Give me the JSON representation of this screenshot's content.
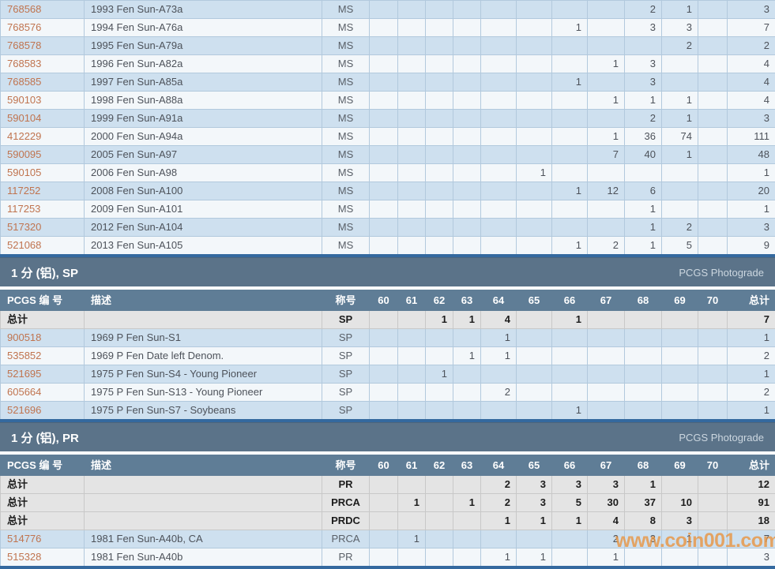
{
  "labels": {
    "photograde": "PCGS Photograde",
    "watermark": "www.coin001.com",
    "totals_row": "总计"
  },
  "columns": {
    "pcgs": "PCGS 编 号",
    "desc": "描述",
    "desig": "称号",
    "grades": [
      "60",
      "61",
      "62",
      "63",
      "64",
      "65",
      "66",
      "67",
      "68",
      "69",
      "70"
    ],
    "total": "总计"
  },
  "colors": {
    "row_blue": "#cee0ef",
    "row_white": "#f3f7fa",
    "row_totals_bg": "#e4e4e4",
    "section_bar": "#5b7389",
    "header_row": "#5f7d96",
    "table_bottom_border": "#34699f",
    "pcgs_link": "#c0744f",
    "watermark": "#e89440"
  },
  "sections": [
    {
      "show_header": false,
      "totals": [],
      "rows": [
        {
          "pcgs": "768568",
          "desc": "1993 Fen Sun-A73a",
          "desig": "MS",
          "g": {
            "68": "2",
            "69": "1"
          },
          "total": "3"
        },
        {
          "pcgs": "768576",
          "desc": "1994 Fen Sun-A76a",
          "desig": "MS",
          "g": {
            "66": "1",
            "68": "3",
            "69": "3"
          },
          "total": "7"
        },
        {
          "pcgs": "768578",
          "desc": "1995 Fen Sun-A79a",
          "desig": "MS",
          "g": {
            "69": "2"
          },
          "total": "2"
        },
        {
          "pcgs": "768583",
          "desc": "1996 Fen Sun-A82a",
          "desig": "MS",
          "g": {
            "67": "1",
            "68": "3"
          },
          "total": "4"
        },
        {
          "pcgs": "768585",
          "desc": "1997 Fen Sun-A85a",
          "desig": "MS",
          "g": {
            "66": "1",
            "68": "3"
          },
          "total": "4"
        },
        {
          "pcgs": "590103",
          "desc": "1998 Fen Sun-A88a",
          "desig": "MS",
          "g": {
            "67": "1",
            "68": "1",
            "69": "1"
          },
          "total": "4"
        },
        {
          "pcgs": "590104",
          "desc": "1999 Fen Sun-A91a",
          "desig": "MS",
          "g": {
            "68": "2",
            "69": "1"
          },
          "total": "3"
        },
        {
          "pcgs": "412229",
          "desc": "2000 Fen Sun-A94a",
          "desig": "MS",
          "g": {
            "67": "1",
            "68": "36",
            "69": "74"
          },
          "total": "111"
        },
        {
          "pcgs": "590095",
          "desc": "2005 Fen Sun-A97",
          "desig": "MS",
          "g": {
            "67": "7",
            "68": "40",
            "69": "1"
          },
          "total": "48"
        },
        {
          "pcgs": "590105",
          "desc": "2006 Fen Sun-A98",
          "desig": "MS",
          "g": {
            "65": "1"
          },
          "total": "1"
        },
        {
          "pcgs": "117252",
          "desc": "2008 Fen Sun-A100",
          "desig": "MS",
          "g": {
            "66": "1",
            "67": "12",
            "68": "6"
          },
          "total": "20"
        },
        {
          "pcgs": "117253",
          "desc": "2009 Fen Sun-A101",
          "desig": "MS",
          "g": {
            "68": "1"
          },
          "total": "1"
        },
        {
          "pcgs": "517320",
          "desc": "2012 Fen Sun-A104",
          "desig": "MS",
          "g": {
            "68": "1",
            "69": "2"
          },
          "total": "3"
        },
        {
          "pcgs": "521068",
          "desc": "2013 Fen Sun-A105",
          "desig": "MS",
          "g": {
            "66": "1",
            "67": "2",
            "68": "1",
            "69": "5"
          },
          "total": "9"
        }
      ]
    },
    {
      "title": "1 分 (铝), SP",
      "show_header": true,
      "totals": [
        {
          "desig": "SP",
          "g": {
            "62": "1",
            "63": "1",
            "64": "4",
            "66": "1"
          },
          "total": "7"
        }
      ],
      "rows": [
        {
          "pcgs": "900518",
          "desc": "1969 P Fen Sun-S1",
          "desig": "SP",
          "g": {
            "64": "1"
          },
          "total": "1"
        },
        {
          "pcgs": "535852",
          "desc": "1969 P Fen Date left Denom.",
          "desig": "SP",
          "g": {
            "63": "1",
            "64": "1"
          },
          "total": "2"
        },
        {
          "pcgs": "521695",
          "desc": "1975 P Fen Sun-S4 - Young Pioneer",
          "desig": "SP",
          "g": {
            "62": "1"
          },
          "total": "1"
        },
        {
          "pcgs": "605664",
          "desc": "1975 P Fen Sun-S13 - Young Pioneer",
          "desig": "SP",
          "g": {
            "64": "2"
          },
          "total": "2"
        },
        {
          "pcgs": "521696",
          "desc": "1975 P Fen Sun-S7 - Soybeans",
          "desig": "SP",
          "g": {
            "66": "1"
          },
          "total": "1"
        }
      ]
    },
    {
      "title": "1 分 (铝), PR",
      "show_header": true,
      "totals": [
        {
          "desig": "PR",
          "g": {
            "64": "2",
            "65": "3",
            "66": "3",
            "67": "3",
            "68": "1"
          },
          "total": "12"
        },
        {
          "desig": "PRCA",
          "g": {
            "61": "1",
            "63": "1",
            "64": "2",
            "65": "3",
            "66": "5",
            "67": "30",
            "68": "37",
            "69": "10"
          },
          "total": "91"
        },
        {
          "desig": "PRDC",
          "g": {
            "64": "1",
            "65": "1",
            "66": "1",
            "67": "4",
            "68": "8",
            "69": "3"
          },
          "total": "18"
        }
      ],
      "rows": [
        {
          "pcgs": "514776",
          "desc": "1981 Fen Sun-A40b, CA",
          "desig": "PRCA",
          "g": {
            "61": "1",
            "67": "2",
            "68": "3",
            "69": "1"
          },
          "total": "7"
        },
        {
          "pcgs": "515328",
          "desc": "1981 Fen Sun-A40b",
          "desig": "PR",
          "g": {
            "64": "1",
            "65": "1",
            "67": "1"
          },
          "total": "3"
        }
      ]
    }
  ]
}
